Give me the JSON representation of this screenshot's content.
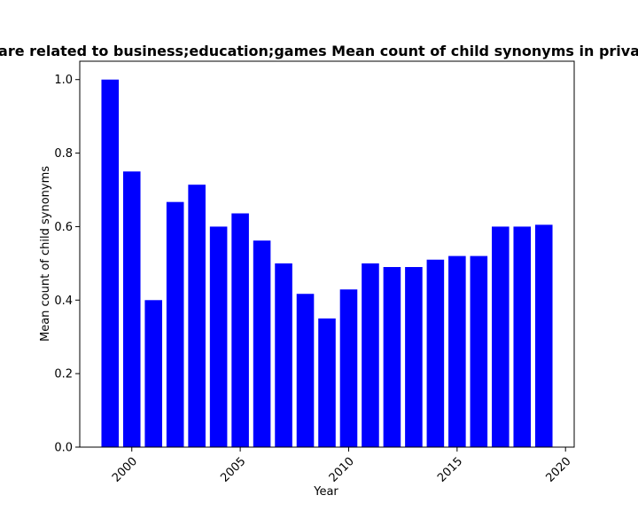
{
  "chart_data": {
    "type": "bar",
    "title": "are related to business;education;games Mean count of child synonyms in priva",
    "xlabel": "Year",
    "ylabel": "Mean count of child synonyms",
    "x": [
      1999,
      2000,
      2001,
      2002,
      2003,
      2004,
      2005,
      2006,
      2007,
      2008,
      2009,
      2010,
      2011,
      2012,
      2013,
      2014,
      2015,
      2016,
      2017,
      2018,
      2019
    ],
    "values": [
      1.0,
      0.75,
      0.4,
      0.667,
      0.714,
      0.6,
      0.636,
      0.562,
      0.5,
      0.417,
      0.35,
      0.429,
      0.5,
      0.49,
      0.49,
      0.51,
      0.52,
      0.52,
      0.6,
      0.6,
      0.605
    ],
    "xlim": [
      1997.6,
      2020.4
    ],
    "ylim": [
      0,
      1.05
    ],
    "xticks": [
      2000,
      2005,
      2010,
      2015,
      2020
    ],
    "xtick_labels": [
      "2000",
      "2005",
      "2010",
      "2015",
      "2020"
    ],
    "yticks": [
      0.0,
      0.2,
      0.4,
      0.6,
      0.8,
      1.0
    ],
    "ytick_labels": [
      "0.0",
      "0.2",
      "0.4",
      "0.6",
      "0.8",
      "1.0"
    ],
    "bar_color": "#0000ff",
    "grid": false,
    "legend": "none"
  }
}
